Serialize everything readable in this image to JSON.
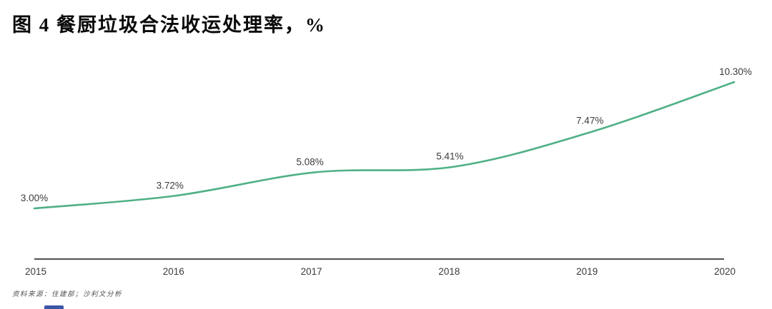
{
  "figure": {
    "title": "图 4 餐厨垃圾合法收运处理率，%",
    "source_note": "资料来源：住建部；沙利文分析"
  },
  "chart_data": {
    "type": "line",
    "title": "图 4 餐厨垃圾合法收运处理率，%",
    "categories": [
      "2015",
      "2016",
      "2017",
      "2018",
      "2019",
      "2020"
    ],
    "series": [
      {
        "name": "餐厨垃圾合法收运处理率",
        "values": [
          3.0,
          3.72,
          5.08,
          5.41,
          7.47,
          10.3
        ],
        "data_labels": [
          "3.00%",
          "3.72%",
          "5.08%",
          "5.41%",
          "7.47%",
          "10.30%"
        ]
      }
    ],
    "xlabel": "",
    "ylabel": "",
    "unit": "%",
    "ylim": [
      3.0,
      10.3
    ],
    "grid": false,
    "legend": false,
    "y_axis_visible": false,
    "x_axis_visible": true,
    "colors": {
      "line": "#4fb085",
      "axis": "#4f4f4f",
      "data_label": "#3b3b3b",
      "tick_label": "#3b3b3b"
    }
  }
}
